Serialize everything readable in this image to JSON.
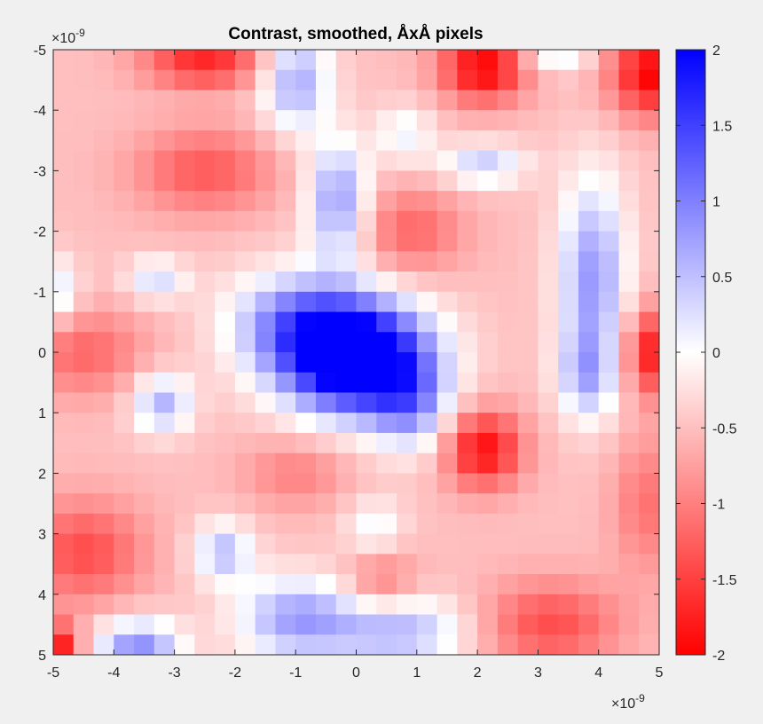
{
  "chart_data": {
    "type": "heatmap",
    "title": "Contrast, smoothed, ÅxÅ pixels",
    "xlabel": "",
    "ylabel": "",
    "x_exponent_label": "×10",
    "x_exponent": "-9",
    "y_exponent_label": "×10",
    "y_exponent": "-9",
    "xlim": [
      -5,
      5
    ],
    "ylim": [
      -5,
      5
    ],
    "y_direction": "reverse",
    "x_ticks": [
      -5,
      -4,
      -3,
      -2,
      -1,
      0,
      1,
      2,
      3,
      4,
      5
    ],
    "x_tick_labels": [
      "-5",
      "-4",
      "-3",
      "-2",
      "-1",
      "0",
      "1",
      "2",
      "3",
      "4",
      "5"
    ],
    "y_ticks": [
      -5,
      -4,
      -3,
      -2,
      -1,
      0,
      1,
      2,
      3,
      4,
      5
    ],
    "y_tick_labels": [
      "-5",
      "-4",
      "-3",
      "-2",
      "-1",
      "0",
      "1",
      "2",
      "3",
      "4",
      "5"
    ],
    "clim": [
      -2,
      2
    ],
    "colorbar_ticks": [
      2,
      1.5,
      1,
      0.5,
      0,
      -0.5,
      -1,
      -1.5,
      -2
    ],
    "colorbar_tick_labels": [
      "2",
      "1.5",
      "1",
      "0.5",
      "0",
      "-0.5",
      "-1",
      "-1.5",
      "-2"
    ],
    "colormap": {
      "low": "#ff0000",
      "mid": "#ffffff",
      "high": "#0000ff"
    },
    "grid": false,
    "grid_size": [
      30,
      30
    ],
    "baseline": -0.5,
    "features": [
      {
        "x": 0.0,
        "y": 0.1,
        "sx": 0.85,
        "sy": 0.65,
        "amp": 3.2
      },
      {
        "x": -1.0,
        "y": -0.5,
        "sx": 0.8,
        "sy": 0.6,
        "amp": 1.2
      },
      {
        "x": 0.9,
        "y": 0.9,
        "sx": 0.45,
        "sy": 0.55,
        "amp": 1.0
      },
      {
        "x": -0.3,
        "y": -2.5,
        "sx": 0.35,
        "sy": 0.7,
        "amp": 1.3
      },
      {
        "x": -1.0,
        "y": -4.5,
        "sx": 0.4,
        "sy": 0.6,
        "amp": 1.2
      },
      {
        "x": 3.9,
        "y": -1.2,
        "sx": 0.4,
        "sy": 1.2,
        "amp": 1.3
      },
      {
        "x": 3.8,
        "y": 0.4,
        "sx": 0.35,
        "sy": 0.5,
        "amp": 0.8
      },
      {
        "x": -3.2,
        "y": 0.85,
        "sx": 0.35,
        "sy": 0.35,
        "amp": 1.1
      },
      {
        "x": -3.3,
        "y": -1.2,
        "sx": 0.35,
        "sy": 0.25,
        "amp": 0.8
      },
      {
        "x": -2.2,
        "y": 3.3,
        "sx": 0.35,
        "sy": 0.35,
        "amp": 1.0
      },
      {
        "x": -3.6,
        "y": 4.9,
        "sx": 0.5,
        "sy": 0.35,
        "amp": 1.4
      },
      {
        "x": -1.0,
        "y": 4.4,
        "sx": 0.7,
        "sy": 0.5,
        "amp": 1.2
      },
      {
        "x": 0.7,
        "y": 4.6,
        "sx": 0.8,
        "sy": 0.4,
        "amp": 1.1
      },
      {
        "x": 2.1,
        "y": -3.1,
        "sx": 0.5,
        "sy": 0.25,
        "amp": 0.9
      },
      {
        "x": 3.3,
        "y": -5.0,
        "sx": 0.4,
        "sy": 0.25,
        "amp": 0.8
      },
      {
        "x": 0.8,
        "y": -3.6,
        "sx": 0.35,
        "sy": 0.35,
        "amp": 0.6
      },
      {
        "x": -5.0,
        "y": -1.0,
        "sx": 0.3,
        "sy": 0.4,
        "amp": 0.8
      },
      {
        "x": 2.1,
        "y": -4.7,
        "sx": 0.5,
        "sy": 0.4,
        "amp": -1.5
      },
      {
        "x": 4.9,
        "y": -4.6,
        "sx": 0.5,
        "sy": 0.5,
        "amp": -1.5
      },
      {
        "x": 4.9,
        "y": 0.0,
        "sx": 0.35,
        "sy": 0.5,
        "amp": -1.3
      },
      {
        "x": 2.1,
        "y": 1.6,
        "sx": 0.45,
        "sy": 0.45,
        "amp": -1.4
      },
      {
        "x": -2.5,
        "y": -4.8,
        "sx": 0.7,
        "sy": 0.3,
        "amp": -1.2
      },
      {
        "x": -5.0,
        "y": 4.9,
        "sx": 0.3,
        "sy": 0.3,
        "amp": -1.5
      },
      {
        "x": -4.5,
        "y": 3.3,
        "sx": 0.7,
        "sy": 0.6,
        "amp": -0.9
      },
      {
        "x": -2.5,
        "y": -3.0,
        "sx": 0.8,
        "sy": 0.5,
        "amp": -0.8
      },
      {
        "x": -4.5,
        "y": 0.0,
        "sx": 0.7,
        "sy": 0.5,
        "amp": -0.7
      },
      {
        "x": 0.9,
        "y": -2.0,
        "sx": 0.6,
        "sy": 0.5,
        "amp": -0.7
      },
      {
        "x": 3.2,
        "y": 4.5,
        "sx": 0.8,
        "sy": 0.5,
        "amp": -0.9
      },
      {
        "x": 4.8,
        "y": 2.5,
        "sx": 0.4,
        "sy": 0.8,
        "amp": -0.6
      },
      {
        "x": -1.0,
        "y": 2.0,
        "sx": 0.6,
        "sy": 0.4,
        "amp": -0.5
      },
      {
        "x": 0.4,
        "y": 3.8,
        "sx": 0.4,
        "sy": 0.4,
        "amp": -0.6
      },
      {
        "x": 0.3,
        "y": 2.9,
        "sx": 0.35,
        "sy": 0.35,
        "amp": 0.6
      }
    ]
  }
}
